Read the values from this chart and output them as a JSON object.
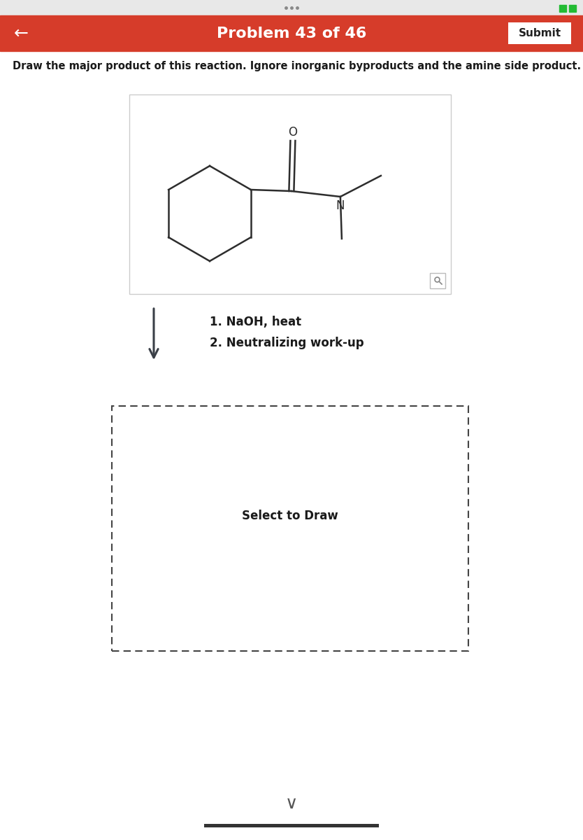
{
  "title": "Problem 43 of 46",
  "title_bg": "#d63c2a",
  "title_text_color": "#ffffff",
  "submit_btn_text": "Submit",
  "back_arrow": "←",
  "instruction": "Draw the major product of this reaction. Ignore inorganic byproducts and the amine side product.",
  "reagent_line1": "1. NaOH, heat",
  "reagent_line2": "2. Neutralizing work-up",
  "select_to_draw": "Select to Draw",
  "page_bg": "#ffffff",
  "box_border": "#cccccc",
  "dashed_border": "#444444",
  "molecule_color": "#2d2d2d",
  "arrow_color": "#3a3f47",
  "text_color": "#1a1a1a",
  "reagent_color": "#1a1a1a",
  "status_bar_color": "#e8e8e8",
  "dots_color": "#888888",
  "green_sq_color": "#22bb33"
}
